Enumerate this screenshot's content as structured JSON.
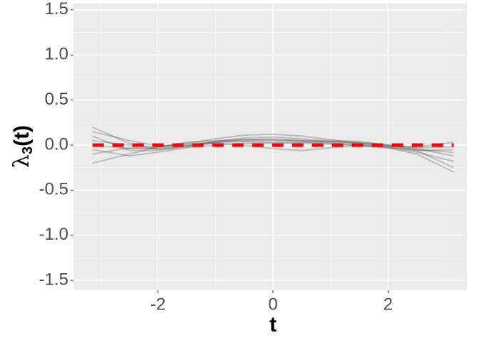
{
  "chart_data": {
    "type": "line",
    "xlabel": "t",
    "ylabel": {
      "symbol": "λ",
      "subscript": "3",
      "suffix": "(t)"
    },
    "x": [
      -3.14,
      -2.5,
      -2,
      -1.5,
      -1,
      -0.5,
      0,
      0.5,
      1,
      1.5,
      2,
      2.5,
      3.14
    ],
    "series": [
      {
        "color": "#333333",
        "opacity": 0.25,
        "width": 2,
        "values": [
          0.2,
          0.02,
          -0.05,
          -0.02,
          0.04,
          0.08,
          0.09,
          0.07,
          0.04,
          0.02,
          0.0,
          -0.04,
          -0.12
        ]
      },
      {
        "color": "#333333",
        "opacity": 0.25,
        "width": 2,
        "values": [
          -0.2,
          -0.1,
          -0.02,
          0.03,
          0.05,
          0.06,
          0.06,
          0.05,
          0.05,
          0.04,
          0.0,
          -0.06,
          -0.25
        ]
      },
      {
        "color": "#333333",
        "opacity": 0.25,
        "width": 2,
        "values": [
          0.1,
          -0.06,
          -0.06,
          -0.01,
          0.03,
          0.05,
          0.05,
          0.04,
          0.02,
          -0.01,
          -0.03,
          -0.06,
          -0.05
        ]
      },
      {
        "color": "#333333",
        "opacity": 0.25,
        "width": 2,
        "values": [
          -0.05,
          -0.12,
          -0.08,
          -0.03,
          0.0,
          0.02,
          0.02,
          0.02,
          0.01,
          0.0,
          -0.02,
          -0.08,
          -0.18
        ]
      },
      {
        "color": "#333333",
        "opacity": 0.25,
        "width": 2,
        "values": [
          0.05,
          0.0,
          -0.02,
          0.02,
          0.07,
          0.11,
          0.12,
          0.1,
          0.06,
          0.02,
          -0.01,
          -0.02,
          0.03
        ]
      },
      {
        "color": "#333333",
        "opacity": 0.25,
        "width": 2,
        "values": [
          -0.1,
          -0.03,
          -0.04,
          -0.01,
          0.02,
          0.0,
          -0.04,
          -0.06,
          -0.03,
          0.0,
          -0.03,
          -0.1,
          -0.3
        ]
      },
      {
        "color": "#333333",
        "opacity": 0.25,
        "width": 2,
        "values": [
          0.0,
          -0.04,
          -0.03,
          0.01,
          0.04,
          0.06,
          0.07,
          0.05,
          0.03,
          0.01,
          -0.02,
          -0.05,
          -0.08
        ]
      },
      {
        "color": "#333333",
        "opacity": 0.25,
        "width": 2,
        "values": [
          0.15,
          0.05,
          -0.01,
          0.0,
          0.03,
          0.04,
          0.03,
          0.03,
          0.04,
          0.03,
          0.0,
          -0.03,
          -0.02
        ]
      },
      {
        "color": "#ff0000",
        "opacity": 1,
        "width": 5,
        "dashed": true,
        "values": [
          0,
          0,
          0,
          0,
          0,
          0,
          0,
          0,
          0,
          0,
          0,
          0,
          0
        ]
      }
    ],
    "xlim": [
      -3.47,
      3.37
    ],
    "xticks": [
      -2,
      0,
      2
    ],
    "xminor": [
      -3,
      -1,
      1,
      3
    ],
    "ylim": [
      -1.61,
      1.57
    ],
    "yticks": [
      -1.5,
      -1.0,
      -0.5,
      0.0,
      0.5,
      1.0,
      1.5
    ],
    "yticklabels": [
      "-1.5",
      "-1.0",
      "-0.5",
      "0.0",
      "0.5",
      "1.0",
      "1.5"
    ],
    "yminor": [
      -1.25,
      -0.75,
      -0.25,
      0.25,
      0.75,
      1.25
    ],
    "grid": true
  }
}
